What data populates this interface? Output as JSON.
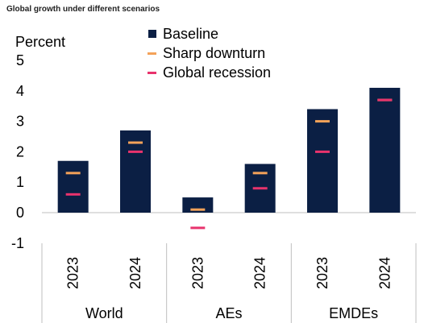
{
  "chart_data": {
    "type": "bar",
    "title": "Global growth under different scenarios",
    "ylabel": "Percent",
    "ylim": [
      -1,
      5
    ],
    "yticks": [
      "5",
      "4",
      "3",
      "2",
      "1",
      "0",
      "-1"
    ],
    "groups": [
      {
        "name": "World",
        "years": [
          "2023",
          "2024"
        ]
      },
      {
        "name": "AEs",
        "years": [
          "2023",
          "2024"
        ]
      },
      {
        "name": "EMDEs",
        "years": [
          "2023",
          "2024"
        ]
      }
    ],
    "categories": [
      "2023",
      "2024",
      "2023",
      "2024",
      "2023",
      "2024"
    ],
    "series": [
      {
        "name": "Baseline",
        "style": "bar",
        "color": "#0b1f44",
        "values": [
          1.7,
          2.7,
          0.5,
          1.6,
          3.4,
          4.1
        ]
      },
      {
        "name": "Sharp downturn",
        "style": "marker",
        "color": "#f4a259",
        "values": [
          1.3,
          2.3,
          0.1,
          1.3,
          3.0,
          3.7
        ]
      },
      {
        "name": "Global recession",
        "style": "marker",
        "color": "#e8336d",
        "values": [
          0.6,
          2.0,
          -0.5,
          0.8,
          2.0,
          3.7
        ]
      }
    ]
  }
}
